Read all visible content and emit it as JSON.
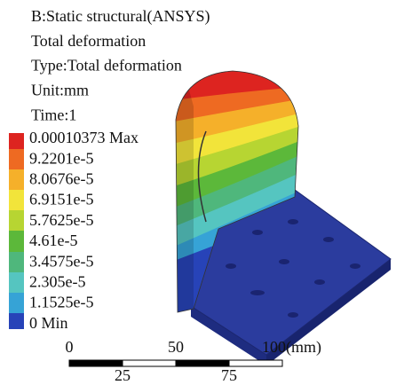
{
  "header": {
    "lines": [
      "B:Static structural(ANSYS)",
      "Total deformation",
      "Type:Total deformation",
      "Unit:mm",
      "Time:1"
    ]
  },
  "legend": {
    "labels": [
      "0.00010373 Max",
      "9.2201e-5",
      "8.0676e-5",
      "6.9151e-5",
      "5.7625e-5",
      "4.61e-5",
      "3.4575e-5",
      "2.305e-5",
      "1.1525e-5",
      "0 Min"
    ]
  },
  "scale_bar": {
    "top_labels": [
      "0",
      "50",
      "100(mm)"
    ],
    "bottom_labels": [
      "25",
      "75"
    ]
  }
}
